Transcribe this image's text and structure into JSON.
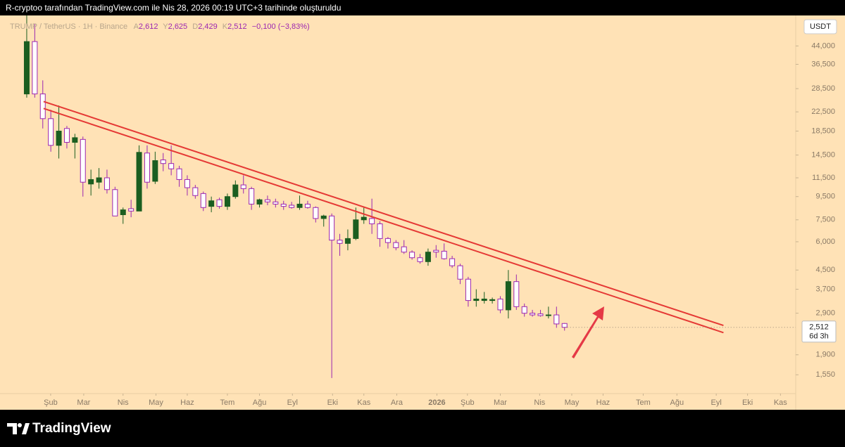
{
  "header": {
    "caption": "R-cryptoo tarafından TradingView.com ile Nis 28, 2026 00:19 UTC+3 tarihinde oluşturuldu"
  },
  "chart_data": {
    "type": "candlestick",
    "symbol": "TRUMP / TetherUS · 1H · Binance",
    "ohlc_labels": [
      {
        "key": "A",
        "value": "2,612"
      },
      {
        "key": "Y",
        "value": "2,625"
      },
      {
        "key": "D",
        "value": "2,429"
      },
      {
        "key": "K",
        "value": "2,512"
      }
    ],
    "change": "−0,100 (−3,83%)",
    "currency": "USDT",
    "last_price_label": "2,512",
    "countdown": "6d 3h",
    "log_scale": true,
    "up_color": "#1b5e20",
    "down_color": "#ffffff",
    "down_edge_color": "#9c27b0",
    "x": [
      0,
      1,
      2,
      3,
      4,
      5,
      6,
      7,
      8,
      9,
      10,
      11,
      12,
      13,
      14,
      15,
      16,
      17,
      18,
      19,
      20,
      21,
      22,
      23,
      24,
      25,
      26,
      27,
      28,
      29,
      30,
      31,
      32,
      33,
      34,
      35,
      36,
      37,
      38,
      39,
      40,
      41,
      42,
      43,
      44,
      45,
      46,
      47,
      48,
      49,
      50,
      51,
      52,
      53,
      54,
      55,
      56,
      57,
      58,
      59,
      60,
      61,
      62,
      63,
      64,
      65,
      66,
      67
    ],
    "open": [
      27,
      46,
      27,
      21,
      16,
      19,
      16.5,
      17,
      10.8,
      11,
      11.5,
      10.2,
      7.9,
      8.4,
      8.2,
      14.8,
      11.1,
      13.8,
      13.3,
      12.6,
      11.3,
      10.4,
      9.8,
      8.6,
      9.2,
      8.6,
      9.5,
      10.7,
      10.3,
      8.8,
      9.2,
      9.0,
      8.8,
      8.7,
      8.5,
      8.8,
      8.5,
      7.6,
      7.8,
      6.1,
      5.9,
      6.2,
      7.5,
      7.6,
      7.2,
      6.2,
      5.95,
      5.7,
      5.4,
      5.1,
      4.9,
      5.5,
      5.45,
      5.05,
      4.7,
      4.1,
      3.3,
      3.3,
      3.3,
      3.35,
      3.0,
      4.0,
      3.1,
      2.9,
      2.88,
      2.83,
      2.85,
      2.612
    ],
    "high": [
      60,
      55,
      31,
      23,
      24,
      19.5,
      18,
      17.5,
      12.5,
      12.7,
      12.5,
      10.5,
      8.5,
      9.2,
      16,
      16,
      15,
      14.8,
      16,
      13,
      11.8,
      10.7,
      10,
      9.5,
      9.4,
      9.8,
      11.2,
      11.8,
      10.5,
      9.3,
      9.6,
      9.3,
      9.1,
      9.0,
      9.6,
      9.1,
      8.6,
      7.9,
      8.0,
      6.5,
      6.8,
      8.5,
      8.5,
      9.3,
      7.4,
      6.3,
      6.1,
      6.1,
      5.5,
      5.3,
      5.6,
      5.8,
      5.9,
      5.2,
      4.8,
      4.2,
      3.7,
      3.6,
      3.4,
      3.45,
      4.5,
      4.3,
      3.2,
      3.0,
      3.0,
      3.1,
      3.1,
      2.625
    ],
    "low": [
      26,
      26,
      19,
      15,
      14,
      15.5,
      14,
      9.5,
      9.6,
      10.3,
      9.8,
      7.8,
      7.2,
      7.7,
      8.2,
      10.3,
      10.8,
      12.3,
      11.8,
      10.5,
      9.6,
      9.3,
      8.2,
      8.1,
      8.4,
      8.3,
      9.3,
      9.8,
      8.3,
      8.5,
      8.7,
      8.5,
      8.3,
      8.4,
      8.3,
      8.4,
      7.3,
      7.0,
      1.5,
      5.2,
      5.5,
      6.1,
      7.2,
      6.5,
      5.7,
      5.6,
      5.5,
      5.3,
      5.0,
      4.8,
      4.7,
      5.1,
      5.0,
      4.6,
      3.9,
      3.1,
      3.1,
      3.2,
      3.2,
      2.9,
      2.75,
      3.0,
      2.8,
      2.8,
      2.8,
      2.75,
      2.5,
      2.429
    ],
    "close": [
      46,
      27,
      21,
      16,
      18.5,
      16.5,
      17.3,
      11,
      11.3,
      11.5,
      10.2,
      7.8,
      8.3,
      8.2,
      14.9,
      11,
      13.7,
      13.3,
      12.6,
      11.3,
      10.4,
      9.6,
      8.5,
      9.1,
      8.6,
      9.5,
      10.7,
      10.3,
      8.8,
      9.2,
      9.0,
      8.8,
      8.6,
      8.5,
      8.8,
      8.5,
      7.6,
      7.8,
      6.1,
      5.9,
      6.2,
      7.5,
      7.7,
      7.2,
      6.2,
      5.95,
      5.65,
      5.4,
      5.1,
      4.9,
      5.4,
      5.4,
      5.05,
      4.7,
      4.1,
      3.3,
      3.35,
      3.35,
      3.33,
      3.0,
      4.0,
      3.1,
      2.9,
      2.85,
      2.83,
      2.85,
      2.6,
      2.512
    ],
    "xlim": [
      -3.33,
      95.8
    ],
    "xticks": [
      {
        "value": 2.98,
        "label": "Şub"
      },
      {
        "value": 7.1,
        "label": "Mar"
      },
      {
        "value": 12.0,
        "label": "Nis"
      },
      {
        "value": 16.1,
        "label": "May"
      },
      {
        "value": 20.0,
        "label": "Haz"
      },
      {
        "value": 25.0,
        "label": "Tem"
      },
      {
        "value": 29.0,
        "label": "Ağu"
      },
      {
        "value": 33.1,
        "label": "Eyl"
      },
      {
        "value": 38.1,
        "label": "Eki"
      },
      {
        "value": 42.0,
        "label": "Kas"
      },
      {
        "value": 46.1,
        "label": "Ara"
      },
      {
        "value": 51.1,
        "label": "2026"
      },
      {
        "value": 54.9,
        "label": "Şub"
      },
      {
        "value": 59.0,
        "label": "Mar"
      },
      {
        "value": 63.9,
        "label": "Nis"
      },
      {
        "value": 67.9,
        "label": "May"
      },
      {
        "value": 71.8,
        "label": "Haz"
      },
      {
        "value": 76.8,
        "label": "Tem"
      },
      {
        "value": 81.0,
        "label": "Ağu"
      },
      {
        "value": 85.9,
        "label": "Eyl"
      },
      {
        "value": 89.8,
        "label": "Eki"
      },
      {
        "value": 93.9,
        "label": "Kas"
      }
    ],
    "ylim": [
      1.28,
      60
    ],
    "yticks": [
      {
        "value": 44,
        "label": "44,000"
      },
      {
        "value": 36.5,
        "label": "36,500"
      },
      {
        "value": 28.5,
        "label": "28,500"
      },
      {
        "value": 22.5,
        "label": "22,500"
      },
      {
        "value": 18.5,
        "label": "18,500"
      },
      {
        "value": 14.5,
        "label": "14,500"
      },
      {
        "value": 11.5,
        "label": "11,500"
      },
      {
        "value": 9.5,
        "label": "9,500"
      },
      {
        "value": 7.5,
        "label": "7,500"
      },
      {
        "value": 6,
        "label": "6,000"
      },
      {
        "value": 4.5,
        "label": "4,500"
      },
      {
        "value": 3.7,
        "label": "3,700"
      },
      {
        "value": 2.9,
        "label": "2,900"
      },
      {
        "value": 1.9,
        "label": "1,900"
      },
      {
        "value": 1.55,
        "label": "1,550"
      }
    ],
    "trendlines": [
      {
        "color": "#e53935",
        "x": [
          2.1,
          86.8
        ],
        "values": [
          25.0,
          2.56
        ]
      },
      {
        "color": "#e53935",
        "x": [
          2.1,
          86.8
        ],
        "values": [
          23.3,
          2.38
        ]
      }
    ]
  },
  "footer": {
    "brand": "TradingView"
  }
}
